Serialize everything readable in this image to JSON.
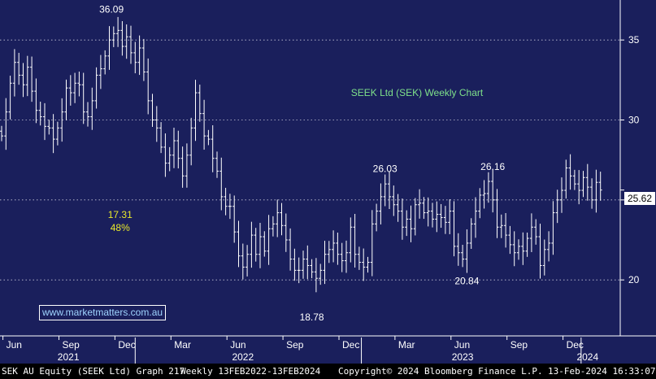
{
  "chart_data": {
    "type": "ohlc-bar",
    "title": "SEEK Ltd (SEK) Weekly Chart",
    "y_axis": {
      "side": "right",
      "ylim": [
        16.5,
        37.5
      ],
      "ticks": [
        20,
        25,
        30,
        35
      ],
      "grid": true,
      "grid_style": "dotted"
    },
    "x_axis": {
      "month_ticks": [
        {
          "label": "Jun",
          "t": 0.3
        },
        {
          "label": "Sep",
          "t": 13.3
        },
        {
          "label": "Dec",
          "t": 26.3
        },
        {
          "label": "Mar",
          "t": 39.3
        },
        {
          "label": "Jun",
          "t": 52.3
        },
        {
          "label": "Sep",
          "t": 65.3
        },
        {
          "label": "Dec",
          "t": 78.3
        },
        {
          "label": "Mar",
          "t": 91.3
        },
        {
          "label": "Jun",
          "t": 104.3
        },
        {
          "label": "Sep",
          "t": 117.3
        },
        {
          "label": "Dec",
          "t": 130.3
        }
      ],
      "year_labels": [
        {
          "label": "2021",
          "t": 15.5
        },
        {
          "label": "2022",
          "t": 56
        },
        {
          "label": "2023",
          "t": 107
        },
        {
          "label": "2024",
          "t": 136
        }
      ],
      "year_separators": [
        31,
        83.5,
        134.5
      ]
    },
    "closes": [
      29,
      30.5,
      32.3,
      33.6,
      32.8,
      32.2,
      33.3,
      31.8,
      30.6,
      30.2,
      29.6,
      29.5,
      28.8,
      29.5,
      30.5,
      32,
      31.7,
      32.3,
      32.2,
      30.5,
      30.2,
      31.2,
      32.8,
      33.2,
      34,
      35,
      35.4,
      35.6,
      34.6,
      35.2,
      34.2,
      33.6,
      34.5,
      33,
      31.2,
      30,
      29.5,
      28.3,
      27.3,
      27.8,
      28.7,
      27.6,
      26.5,
      27.8,
      29.5,
      31.7,
      30.4,
      29,
      28.8,
      27.6,
      26.8,
      25.2,
      24.6,
      24.6,
      23,
      21.5,
      20.8,
      21.6,
      22.8,
      21.6,
      22.7,
      21.8,
      23.2,
      23.5,
      24.2,
      23.4,
      22.5,
      21.3,
      20.6,
      20.6,
      21.3,
      20.9,
      20.5,
      20.1,
      20.6,
      21.6,
      21.9,
      22.3,
      21.6,
      21.2,
      21.7,
      23.3,
      21.6,
      21.1,
      20.8,
      21.1,
      23.5,
      24.3,
      25.2,
      26,
      25.2,
      24.7,
      24.3,
      23.3,
      23.8,
      23.2,
      24.7,
      24.8,
      24.2,
      24.3,
      23.8,
      24.1,
      23.9,
      23.6,
      24.3,
      22.1,
      21.7,
      21.3,
      22.3,
      23.5,
      24.3,
      25.3,
      25.4,
      26.16,
      25,
      23.3,
      23.4,
      22.8,
      22.2,
      21.7,
      22.1,
      21.8,
      22.6,
      23.3,
      22.7,
      20.9,
      21.9,
      22.3,
      24.2,
      25,
      25.6,
      27,
      26.5,
      26,
      25.6,
      26.4,
      25.8,
      25,
      26.1,
      25.62
    ],
    "annotations": [
      {
        "text": "36.09",
        "t": 25.5,
        "value": 36.09,
        "color": "#ffffff"
      },
      {
        "text": "17.31",
        "t": 27.5,
        "value": null,
        "color": "#e8e82c"
      },
      {
        "text": "48%",
        "t": 27.5,
        "value": null,
        "color": "#e8e82c"
      },
      {
        "text": "18.78",
        "t": 72,
        "value": 18.78,
        "color": "#ffffff"
      },
      {
        "text": "26.03",
        "t": 89,
        "value": 26.03,
        "color": "#ffffff"
      },
      {
        "text": "20.84",
        "t": 108,
        "value": 20.84,
        "color": "#ffffff"
      },
      {
        "text": "26.16",
        "t": 114,
        "value": 26.16,
        "color": "#ffffff"
      }
    ],
    "last_price": "25.62"
  },
  "watermark": "www.marketmatters.com.au",
  "footer": {
    "security": "SEK AU Equity (SEEK Ltd) Graph 217",
    "range": "Weekly 13FEB2022-13FEB2024",
    "copyright": "Copyright© 2024 Bloomberg Finance L.P.",
    "timestamp": "13-Feb-2024 16:33:07"
  },
  "colors": {
    "background": "#1a1f5c",
    "bars": "#ffffff",
    "title": "#7ee08a",
    "highlight": "#e8e82c",
    "watermark": "#9fd4ff"
  }
}
